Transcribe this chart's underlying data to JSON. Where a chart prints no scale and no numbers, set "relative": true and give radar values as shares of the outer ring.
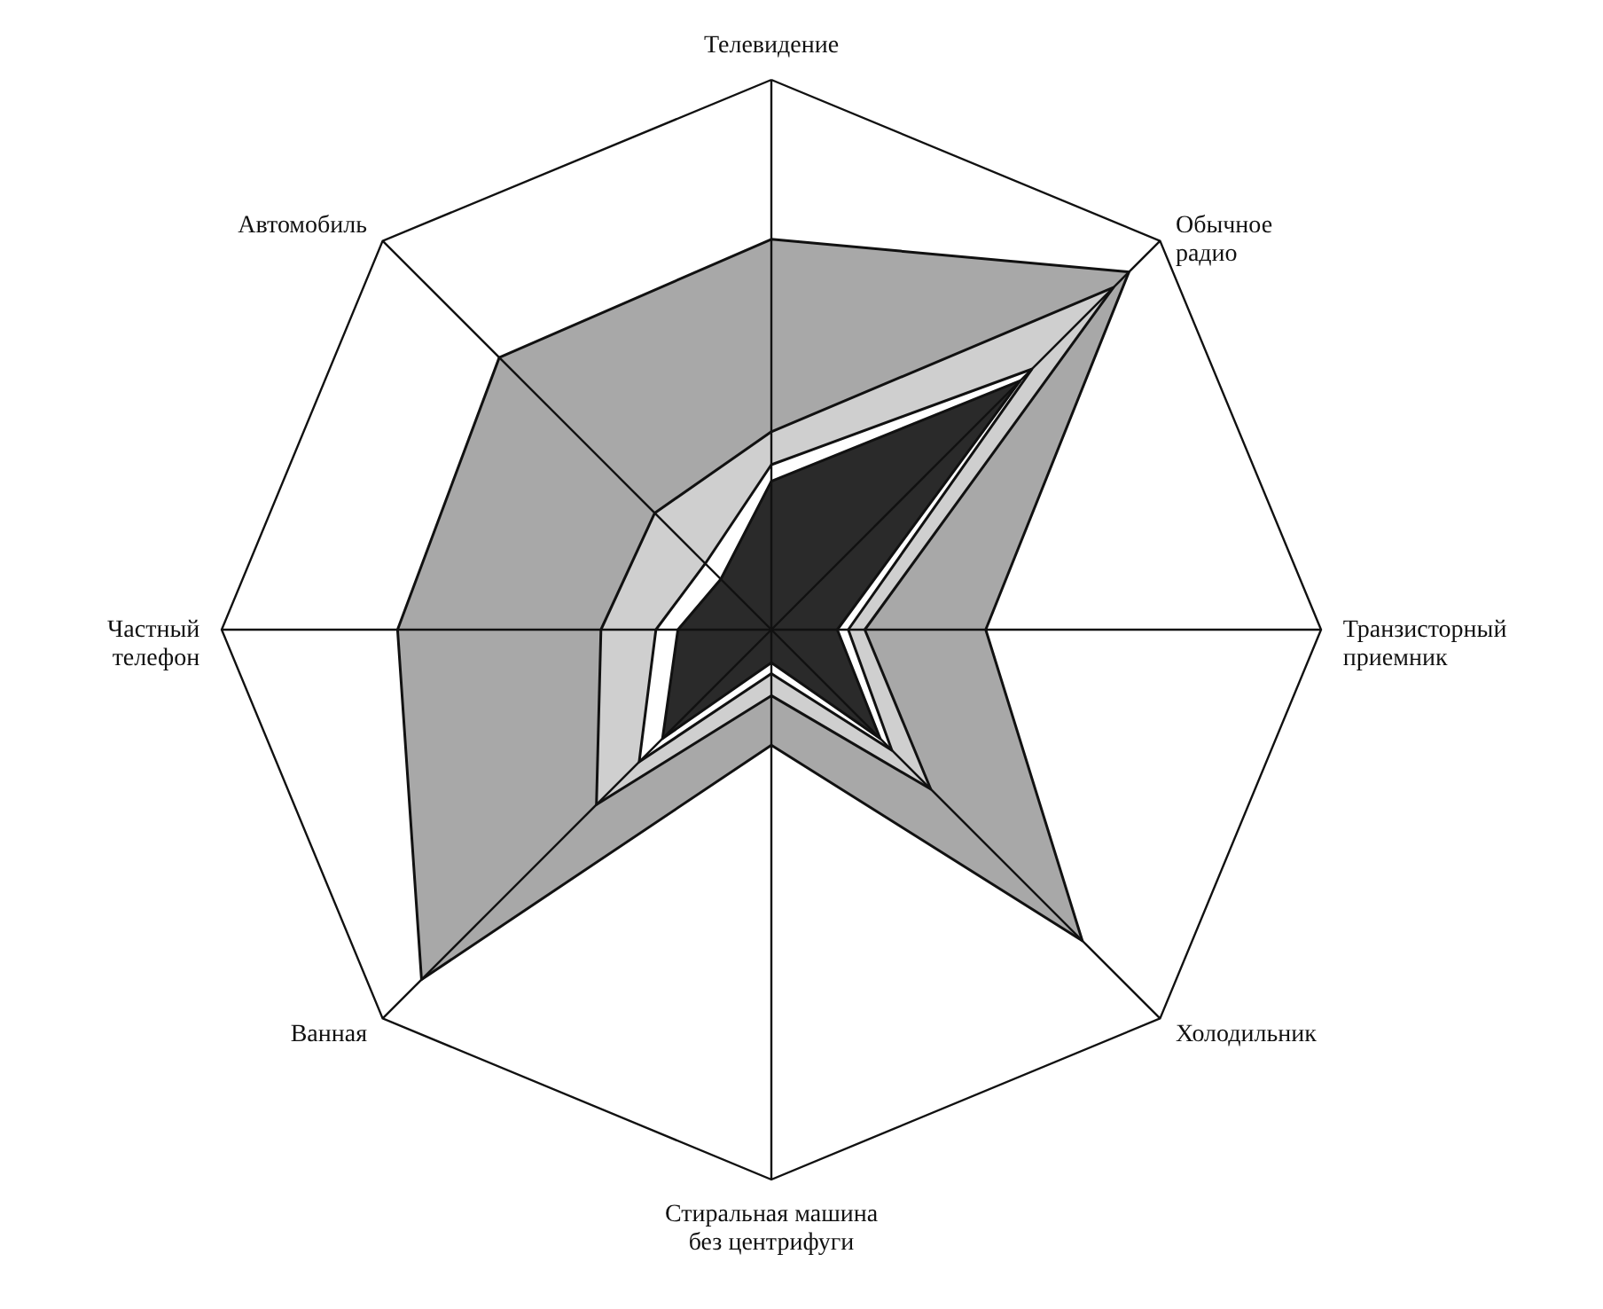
{
  "chart_data": {
    "type": "radar",
    "relative": true,
    "grid": true,
    "categories": [
      "Телевидение",
      "Обычное\nрадио",
      "Транзисторный\nприемник",
      "Холодильник",
      "Стиральная машина\nбез центрифуги",
      "Ванная",
      "Частный\nтелефон",
      "Автомобиль"
    ],
    "series": [
      {
        "color": "#a8a8a8",
        "values": [
          0.71,
          0.92,
          0.39,
          0.8,
          0.21,
          0.9,
          0.68,
          0.7
        ]
      },
      {
        "color": "#cfcfcf",
        "values": [
          0.36,
          0.88,
          0.17,
          0.41,
          0.12,
          0.45,
          0.31,
          0.3
        ]
      },
      {
        "color": "#ffffff",
        "values": [
          0.3,
          0.67,
          0.14,
          0.31,
          0.08,
          0.34,
          0.21,
          0.17
        ]
      },
      {
        "color": "#2a2a2a",
        "values": [
          0.27,
          0.64,
          0.12,
          0.28,
          0.06,
          0.28,
          0.17,
          0.13
        ]
      }
    ]
  }
}
